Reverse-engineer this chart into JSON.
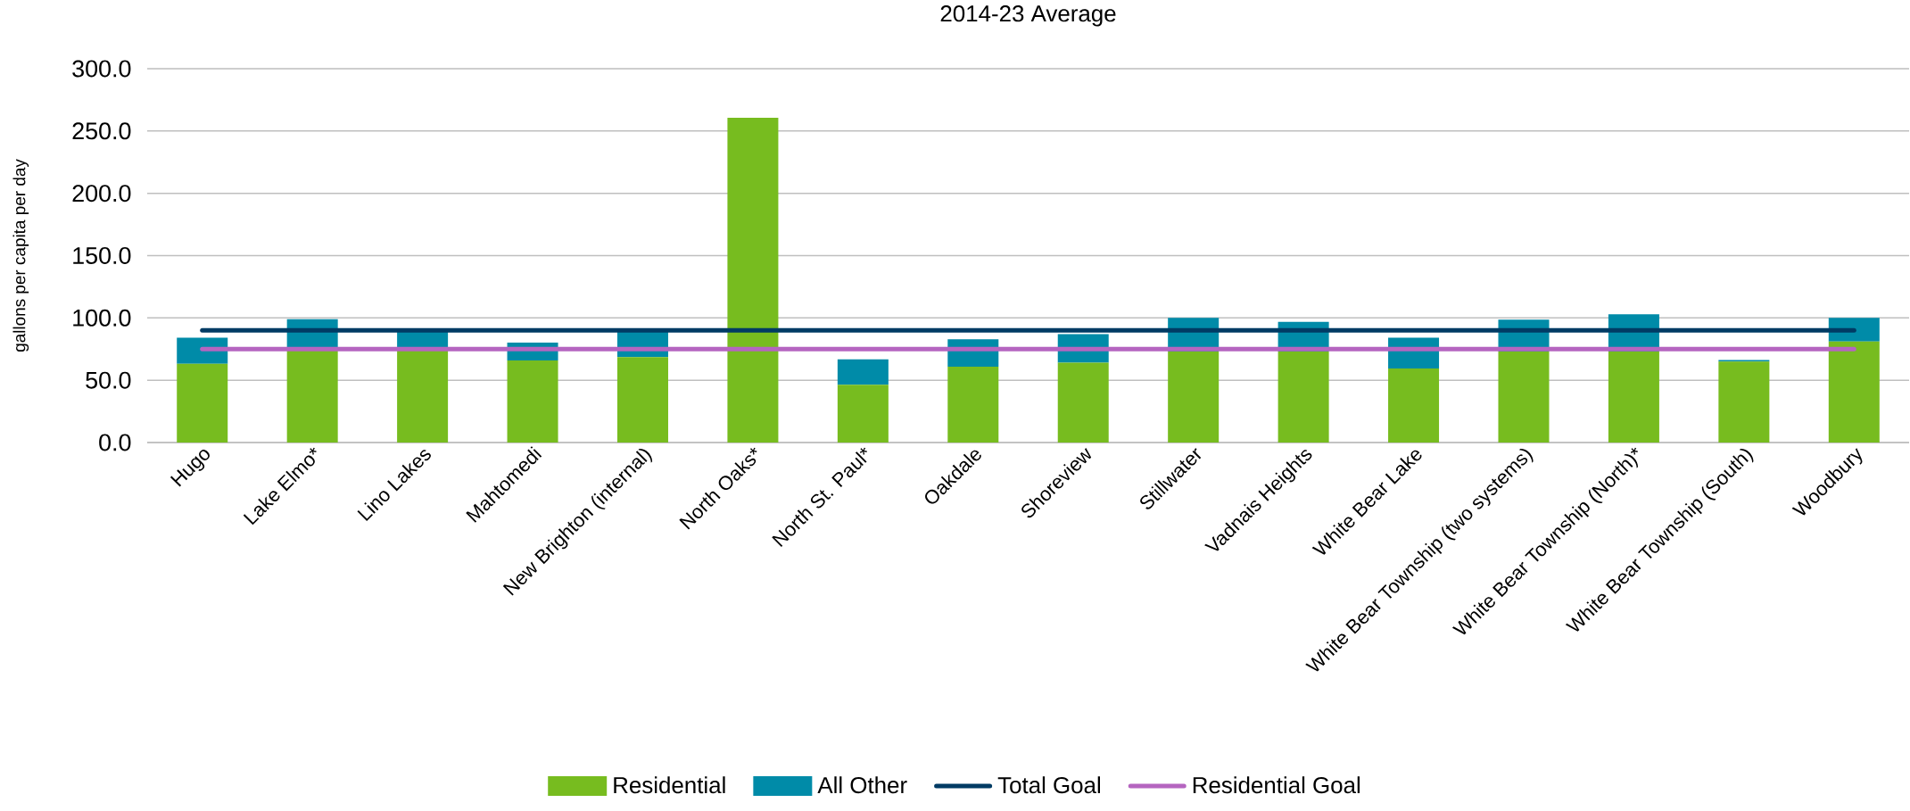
{
  "chart_data": {
    "type": "bar",
    "title": "2014-23 Average",
    "ylabel": "gallons per capita per day",
    "categories": [
      "Hugo",
      "Lake Elmo*",
      "Lino Lakes",
      "Mahtomedi",
      "New Brighton (internal)",
      "North Oaks*",
      "North St. Paul*",
      "Oakdale",
      "Shoreview",
      "Stillwater",
      "Vadnais Heights",
      "White Bear Lake",
      "White Bear Township (two systems)",
      "White Bear Township (North)*",
      "White Bear Township (South)",
      "Woodbury"
    ],
    "stacked": true,
    "series": [
      {
        "name": "Residential",
        "color": "#77bc1f",
        "values": [
          63.1,
          74.0,
          74.0,
          65.8,
          68.5,
          260.6,
          46.4,
          60.8,
          64.0,
          73.0,
          73.0,
          59.5,
          73.0,
          73.0,
          64.9,
          81.0
        ]
      },
      {
        "name": "All Other",
        "color": "#008ba8",
        "values": [
          21.1,
          25.0,
          16.0,
          14.4,
          21.5,
          0.0,
          20.3,
          22.1,
          23.0,
          27.0,
          23.8,
          24.7,
          25.6,
          30.0,
          1.3,
          19.0
        ]
      },
      {
        "name": "Total Goal",
        "type": "line",
        "color": "#003b64",
        "values": [
          90,
          90,
          90,
          90,
          90,
          90,
          90,
          90,
          90,
          90,
          90,
          90,
          90,
          90,
          90,
          90
        ]
      },
      {
        "name": "Residential Goal",
        "type": "line",
        "color": "#b565c0",
        "values": [
          75,
          75,
          75,
          75,
          75,
          75,
          75,
          75,
          75,
          75,
          75,
          75,
          75,
          75,
          75,
          75
        ]
      }
    ],
    "ylim": [
      0,
      300
    ],
    "yticks": [
      {
        "value": 0,
        "label": "0.0"
      },
      {
        "value": 50,
        "label": "50.0"
      },
      {
        "value": 100,
        "label": "100.0"
      },
      {
        "value": 150,
        "label": "150.0"
      },
      {
        "value": 200,
        "label": "200.0"
      },
      {
        "value": 250,
        "label": "250.0"
      },
      {
        "value": 300,
        "label": "300.0"
      }
    ],
    "grid": "y",
    "legend": "bottom"
  }
}
